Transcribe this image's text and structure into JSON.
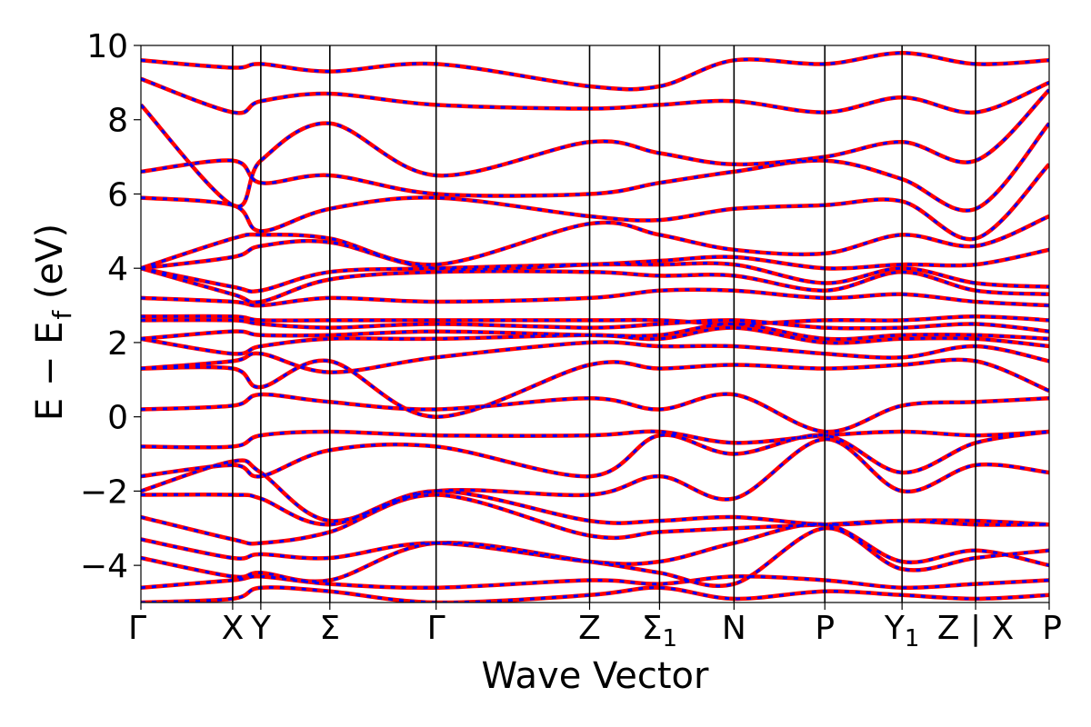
{
  "chart_data": {
    "type": "line",
    "title": "",
    "xlabel": "Wave Vector",
    "ylabel": "E − E",
    "ylabel_sub": "f",
    "ylabel_unit": " (eV)",
    "ylim": [
      -5,
      10
    ],
    "yticks": [
      -4,
      -2,
      0,
      2,
      4,
      6,
      8,
      10
    ],
    "ytick_labels": [
      "−4",
      "−2",
      "0",
      "2",
      "4",
      "6",
      "8",
      "10"
    ],
    "xlim": [
      0,
      100
    ],
    "kpoints": [
      {
        "label": "Γ",
        "sub": "",
        "x": 0
      },
      {
        "label": "X",
        "sub": "",
        "x": 10.1
      },
      {
        "label": "Y",
        "sub": "",
        "x": 13.2
      },
      {
        "label": "Σ",
        "sub": "",
        "x": 20.8
      },
      {
        "label": "Γ",
        "sub": "",
        "x": 32.5
      },
      {
        "label": "Z",
        "sub": "",
        "x": 49.4
      },
      {
        "label": "Σ",
        "sub": "1",
        "x": 57.1
      },
      {
        "label": "N",
        "sub": "",
        "x": 65.3
      },
      {
        "label": "P",
        "sub": "",
        "x": 75.3
      },
      {
        "label": "Y",
        "sub": "1",
        "x": 83.8
      },
      {
        "label": "Z | X",
        "sub": "",
        "x": 91.9
      },
      {
        "label": "P",
        "sub": "",
        "x": 100
      }
    ],
    "grid": false,
    "legend": "none",
    "series_colors": {
      "set_a": "#ff0000",
      "set_b": "#0000ff"
    },
    "bands": [
      [
        -5.0,
        -4.9,
        -4.6,
        -4.7,
        -5.0,
        -4.8,
        -4.6,
        -4.9,
        -4.7,
        -4.8,
        -4.9,
        -4.8
      ],
      [
        -4.6,
        -4.4,
        -4.3,
        -4.5,
        -4.6,
        -4.4,
        -4.5,
        -4.3,
        -4.4,
        -4.6,
        -4.5,
        -4.4
      ],
      [
        -3.8,
        -4.3,
        -4.2,
        -4.4,
        -3.4,
        -3.9,
        -4.2,
        -4.5,
        -3.0,
        -4.1,
        -3.8,
        -3.6
      ],
      [
        -3.3,
        -3.8,
        -3.7,
        -3.8,
        -3.4,
        -3.9,
        -3.9,
        -3.4,
        -2.9,
        -3.9,
        -3.6,
        -4.0
      ],
      [
        -2.7,
        -3.3,
        -3.4,
        -3.1,
        -2.1,
        -3.2,
        -3.1,
        -3.0,
        -2.9,
        -2.8,
        -2.9,
        -2.9
      ],
      [
        -2.1,
        -2.1,
        -2.2,
        -2.9,
        -2.0,
        -2.8,
        -2.8,
        -2.7,
        -2.9,
        -2.8,
        -2.8,
        -2.9
      ],
      [
        -2.0,
        -1.2,
        -1.5,
        -2.8,
        -2.0,
        -2.1,
        -1.6,
        -2.2,
        -0.6,
        -2.0,
        -1.3,
        -1.5
      ],
      [
        -1.6,
        -1.3,
        -1.6,
        -0.9,
        -0.8,
        -1.6,
        -0.5,
        -1.0,
        -0.5,
        -1.5,
        -0.7,
        -0.4
      ],
      [
        -0.8,
        -0.8,
        -0.5,
        -0.4,
        -0.5,
        -0.5,
        -0.4,
        -0.7,
        -0.5,
        -0.4,
        -0.5,
        -0.4
      ],
      [
        0.2,
        0.3,
        0.6,
        0.4,
        0.2,
        0.5,
        0.2,
        0.6,
        -0.4,
        0.3,
        0.4,
        0.5
      ],
      [
        1.3,
        1.3,
        0.8,
        1.5,
        0.0,
        1.4,
        1.3,
        1.4,
        1.3,
        1.4,
        1.5,
        0.7
      ],
      [
        1.3,
        1.5,
        1.7,
        1.2,
        1.6,
        2.0,
        1.9,
        1.9,
        1.7,
        1.6,
        1.9,
        1.5
      ],
      [
        2.1,
        1.7,
        1.9,
        2.1,
        2.1,
        2.2,
        2.1,
        2.4,
        2.0,
        2.1,
        2.1,
        1.9
      ],
      [
        2.1,
        2.3,
        2.2,
        2.2,
        2.3,
        2.2,
        2.2,
        2.5,
        2.1,
        2.2,
        2.2,
        2.1
      ],
      [
        2.6,
        2.6,
        2.5,
        2.4,
        2.5,
        2.4,
        2.5,
        2.6,
        2.4,
        2.4,
        2.5,
        2.3
      ],
      [
        2.7,
        2.7,
        2.6,
        2.6,
        2.6,
        2.6,
        2.6,
        2.5,
        2.6,
        2.6,
        2.7,
        2.6
      ],
      [
        3.2,
        3.1,
        3.0,
        3.2,
        3.1,
        3.2,
        3.4,
        3.4,
        3.2,
        3.3,
        3.1,
        3.0
      ],
      [
        4.0,
        3.3,
        3.1,
        3.7,
        3.9,
        3.9,
        3.8,
        3.8,
        3.4,
        3.9,
        3.4,
        3.3
      ],
      [
        4.0,
        3.5,
        3.4,
        3.9,
        4.0,
        4.1,
        4.1,
        4.1,
        3.6,
        4.0,
        3.6,
        3.5
      ],
      [
        4.0,
        4.3,
        4.6,
        4.7,
        4.0,
        4.1,
        4.2,
        4.3,
        4.0,
        4.1,
        4.1,
        4.5
      ],
      [
        4.0,
        4.8,
        4.9,
        4.8,
        4.1,
        5.2,
        4.9,
        4.5,
        4.4,
        4.9,
        4.6,
        5.4
      ],
      [
        5.9,
        5.7,
        5.0,
        5.6,
        5.9,
        5.4,
        5.3,
        5.6,
        5.7,
        5.8,
        4.8,
        6.8
      ],
      [
        6.6,
        6.9,
        6.3,
        6.5,
        6.0,
        6.0,
        6.3,
        6.6,
        6.9,
        6.4,
        5.6,
        7.9
      ],
      [
        8.4,
        5.7,
        6.9,
        7.9,
        6.5,
        7.4,
        7.1,
        6.8,
        7.0,
        7.4,
        6.9,
        8.8
      ],
      [
        9.1,
        8.2,
        8.5,
        8.7,
        8.4,
        8.3,
        8.4,
        8.5,
        8.2,
        8.6,
        8.2,
        9.0
      ],
      [
        9.6,
        9.4,
        9.5,
        9.3,
        9.5,
        8.9,
        8.9,
        9.6,
        9.5,
        9.8,
        9.5,
        9.6
      ]
    ]
  }
}
